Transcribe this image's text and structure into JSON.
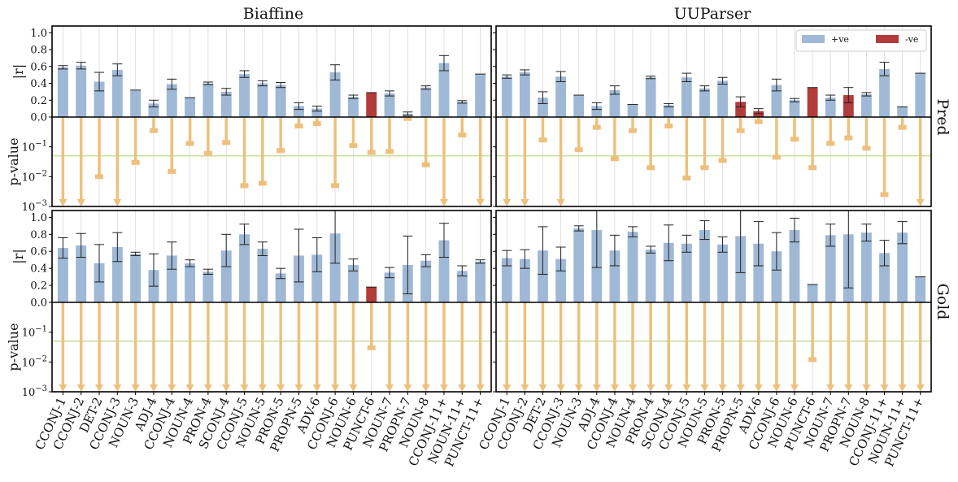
{
  "chart_data": {
    "type": "bar",
    "title_columns": [
      "Biaffine",
      "UUParser"
    ],
    "row_labels": [
      "Pred",
      "Gold"
    ],
    "ylabel_corr": "|r|",
    "ylabel_p": "p-value",
    "corr_ylim": [
      0,
      1.08
    ],
    "corr_ticks": [
      "0.0",
      "0.2",
      "0.4",
      "0.6",
      "0.8",
      "1.0"
    ],
    "p_ylim_log10": [
      -3,
      0
    ],
    "p_ticks": [
      {
        "base": "10",
        "exp": "−1",
        "log": -1
      },
      {
        "base": "10",
        "exp": "−2",
        "log": -2
      },
      {
        "base": "10",
        "exp": "−3",
        "log": -3
      }
    ],
    "significance_threshold": 0.05,
    "legend": {
      "pos": "+ve",
      "neg": "-ve",
      "placement": "top-right"
    },
    "colors": {
      "pos": "#9fb8d5",
      "neg": "#b23b3b",
      "p": "#eec07d",
      "threshold": "#c9e0a0",
      "grid": "#d8d8d8"
    },
    "categories": [
      "CCONJ-1",
      "CCONJ-2",
      "DET-2",
      "CCONJ-3",
      "NOUN-3",
      "ADJ-4",
      "CCONJ-4",
      "NOUN-4",
      "PRON-4",
      "SCONJ-4",
      "CCONJ-5",
      "NOUN-5",
      "PRON-5",
      "PROPN-5",
      "ADV-6",
      "CCONJ-6",
      "NOUN-6",
      "PUNCT-6",
      "NOUN-7",
      "PROPN-7",
      "NOUN-8",
      "CCONJ-11+",
      "NOUN-11+",
      "PUNCT-11+"
    ],
    "panels": [
      {
        "model": "Biaffine",
        "setting": "Pred",
        "r": [
          0.59,
          0.61,
          0.42,
          0.56,
          0.32,
          0.16,
          0.39,
          0.23,
          0.4,
          0.3,
          0.51,
          0.4,
          0.38,
          0.13,
          0.1,
          0.53,
          0.24,
          0.29,
          0.28,
          0.04,
          0.35,
          0.64,
          0.18,
          0.51
        ],
        "err": [
          0.02,
          0.04,
          0.11,
          0.07,
          0.0,
          0.04,
          0.06,
          0.0,
          0.015,
          0.04,
          0.04,
          0.03,
          0.03,
          0.04,
          0.03,
          0.09,
          0.02,
          0.0,
          0.03,
          0.02,
          0.02,
          0.09,
          0.015,
          0.0
        ],
        "neg": [
          false,
          false,
          false,
          false,
          false,
          false,
          false,
          false,
          false,
          false,
          false,
          false,
          false,
          false,
          false,
          false,
          false,
          true,
          false,
          false,
          false,
          false,
          false,
          false
        ],
        "p": [
          0.001,
          0.001,
          0.01,
          0.001,
          0.03,
          0.35,
          0.015,
          0.13,
          0.06,
          0.14,
          0.005,
          0.006,
          0.075,
          0.5,
          0.6,
          0.005,
          0.11,
          0.065,
          0.07,
          0.9,
          0.025,
          0.001,
          0.25,
          0.001
        ]
      },
      {
        "model": "UUParser",
        "setting": "Pred",
        "r": [
          0.48,
          0.53,
          0.23,
          0.48,
          0.26,
          0.13,
          0.32,
          0.15,
          0.47,
          0.14,
          0.47,
          0.34,
          0.43,
          0.18,
          0.07,
          0.38,
          0.2,
          0.35,
          0.23,
          0.26,
          0.27,
          0.57,
          0.12,
          0.52
        ],
        "err": [
          0.02,
          0.03,
          0.07,
          0.06,
          0.0,
          0.04,
          0.05,
          0.0,
          0.015,
          0.02,
          0.05,
          0.03,
          0.04,
          0.06,
          0.03,
          0.07,
          0.02,
          0.0,
          0.03,
          0.09,
          0.02,
          0.08,
          0.0,
          0.0
        ],
        "neg": [
          false,
          false,
          false,
          false,
          false,
          false,
          false,
          false,
          false,
          false,
          false,
          false,
          false,
          true,
          true,
          false,
          false,
          true,
          false,
          true,
          false,
          false,
          false,
          false
        ],
        "p": [
          0.001,
          0.001,
          0.17,
          0.001,
          0.08,
          0.45,
          0.04,
          0.35,
          0.02,
          0.5,
          0.009,
          0.02,
          0.035,
          0.35,
          0.7,
          0.045,
          0.18,
          0.02,
          0.13,
          0.2,
          0.09,
          0.0025,
          0.45,
          0.001
        ]
      },
      {
        "model": "Biaffine",
        "setting": "Gold",
        "r": [
          0.64,
          0.67,
          0.46,
          0.65,
          0.57,
          0.38,
          0.55,
          0.46,
          0.36,
          0.61,
          0.8,
          0.63,
          0.34,
          0.55,
          0.56,
          0.81,
          0.44,
          0.18,
          0.35,
          0.44,
          0.49,
          0.73,
          0.37,
          0.48
        ],
        "err": [
          0.12,
          0.14,
          0.22,
          0.17,
          0.02,
          0.19,
          0.16,
          0.04,
          0.03,
          0.19,
          0.12,
          0.08,
          0.06,
          0.31,
          0.2,
          0.35,
          0.07,
          0.0,
          0.06,
          0.34,
          0.07,
          0.2,
          0.06,
          0.02
        ],
        "neg": [
          false,
          false,
          false,
          false,
          false,
          false,
          false,
          false,
          false,
          false,
          false,
          false,
          false,
          false,
          false,
          false,
          false,
          true,
          false,
          false,
          false,
          false,
          false,
          false
        ],
        "p": [
          0.001,
          0.001,
          0.001,
          0.001,
          0.001,
          0.001,
          0.001,
          0.001,
          0.001,
          0.001,
          0.001,
          0.001,
          0.001,
          0.001,
          0.001,
          0.001,
          0.001,
          0.03,
          0.001,
          0.001,
          0.001,
          0.001,
          0.001,
          0.001
        ]
      },
      {
        "model": "UUParser",
        "setting": "Gold",
        "r": [
          0.52,
          0.51,
          0.61,
          0.51,
          0.87,
          0.85,
          0.61,
          0.83,
          0.62,
          0.7,
          0.69,
          0.85,
          0.68,
          0.78,
          0.69,
          0.6,
          0.85,
          0.21,
          0.79,
          0.8,
          0.82,
          0.58,
          0.82,
          0.3
        ],
        "err": [
          0.09,
          0.11,
          0.28,
          0.14,
          0.03,
          0.44,
          0.18,
          0.06,
          0.04,
          0.21,
          0.1,
          0.11,
          0.09,
          0.43,
          0.26,
          0.22,
          0.14,
          0.0,
          0.13,
          0.63,
          0.1,
          0.15,
          0.13,
          0.0
        ],
        "neg": [
          false,
          false,
          false,
          false,
          false,
          false,
          false,
          false,
          false,
          false,
          false,
          false,
          false,
          false,
          false,
          false,
          false,
          false,
          false,
          false,
          false,
          false,
          false,
          false
        ],
        "p": [
          0.001,
          0.001,
          0.001,
          0.001,
          0.001,
          0.001,
          0.001,
          0.001,
          0.001,
          0.001,
          0.001,
          0.001,
          0.001,
          0.001,
          0.001,
          0.001,
          0.001,
          0.012,
          0.001,
          0.001,
          0.001,
          0.001,
          0.001,
          0.001
        ]
      }
    ]
  }
}
